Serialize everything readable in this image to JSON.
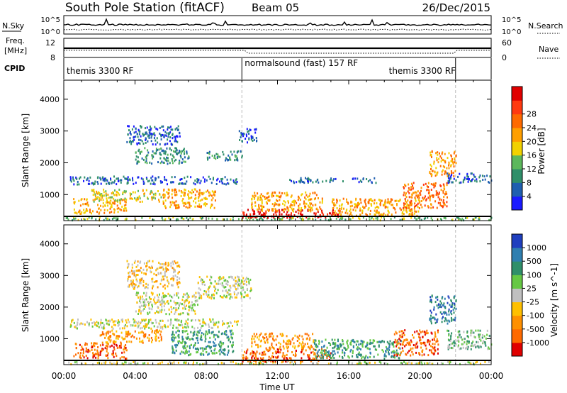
{
  "header": {
    "title": "South Pole Station (fitACF)",
    "beam": "Beam 05",
    "date": "26/Dec/2015"
  },
  "top_panel": {
    "left_label": "N.Sky",
    "left_ticks": [
      "10^5",
      "10^0"
    ],
    "right_label": "N.Search",
    "right_ticks": [
      "10^5",
      "10^0"
    ]
  },
  "freq_panel": {
    "left_label_1": "Freq.",
    "left_label_2": "[MHz]",
    "left_ticks": [
      "12",
      "8"
    ],
    "right_label": "Nave",
    "right_ticks": [
      "60",
      "0"
    ]
  },
  "cpid_panel": {
    "label": "CPID",
    "segments": [
      {
        "text": "themis 3300 RF",
        "start_hour": 0.0,
        "end_hour": 10.0
      },
      {
        "text": "normalsound (fast) 157 RF",
        "start_hour": 10.0,
        "end_hour": 22.0
      },
      {
        "text": "themis 3300 RF",
        "start_hour": 22.0,
        "end_hour": 24.0
      }
    ]
  },
  "chart_data": [
    {
      "type": "heatmap",
      "title": "Power",
      "xlabel": "",
      "ylabel": "Slant Range [km]",
      "xlim": [
        0,
        24
      ],
      "ylim": [
        180,
        4600
      ],
      "y_ticks": [
        1000,
        2000,
        3000,
        4000
      ],
      "colorbar": {
        "label": "Power [dB]",
        "ticks": [
          "4",
          "8",
          "12",
          "16",
          "20",
          "24",
          "28"
        ],
        "colors": [
          "#1a1aff",
          "#1f5fb0",
          "#2f8f6a",
          "#5cb85c",
          "#f2d200",
          "#ff9f00",
          "#ff6a00",
          "#ff3a10",
          "#e00000"
        ]
      },
      "mode_change_hours": [
        10.0,
        22.0
      ],
      "ground_scatter_band_km": [
        200,
        360
      ],
      "echo_regions": [
        {
          "x0": 0.0,
          "x1": 24.0,
          "y0": 220,
          "y1": 320,
          "level": 3
        },
        {
          "x0": 0.3,
          "x1": 9.8,
          "y0": 1350,
          "y1": 1600,
          "level": 1
        },
        {
          "x0": 0.5,
          "x1": 3.5,
          "y0": 420,
          "y1": 900,
          "level": 5
        },
        {
          "x0": 1.5,
          "x1": 5.5,
          "y0": 800,
          "y1": 1200,
          "level": 4
        },
        {
          "x0": 3.5,
          "x1": 6.5,
          "y0": 2600,
          "y1": 3200,
          "level": 1
        },
        {
          "x0": 4.0,
          "x1": 7.0,
          "y0": 2000,
          "y1": 2500,
          "level": 2
        },
        {
          "x0": 5.5,
          "x1": 8.5,
          "y0": 600,
          "y1": 1200,
          "level": 5
        },
        {
          "x0": 8.0,
          "x1": 10.0,
          "y0": 2100,
          "y1": 2400,
          "level": 2
        },
        {
          "x0": 9.8,
          "x1": 10.8,
          "y0": 2650,
          "y1": 3100,
          "level": 1
        },
        {
          "x0": 10.0,
          "x1": 15.5,
          "y0": 300,
          "y1": 560,
          "level": 8
        },
        {
          "x0": 10.5,
          "x1": 14.5,
          "y0": 500,
          "y1": 1100,
          "level": 5
        },
        {
          "x0": 12.5,
          "x1": 17.5,
          "y0": 1400,
          "y1": 1550,
          "level": 1
        },
        {
          "x0": 15.0,
          "x1": 20.0,
          "y0": 350,
          "y1": 900,
          "level": 5
        },
        {
          "x0": 19.0,
          "x1": 21.5,
          "y0": 600,
          "y1": 1400,
          "level": 6
        },
        {
          "x0": 20.5,
          "x1": 22.0,
          "y0": 1600,
          "y1": 2400,
          "level": 5
        },
        {
          "x0": 21.5,
          "x1": 24.0,
          "y0": 1400,
          "y1": 1700,
          "level": 1
        }
      ]
    },
    {
      "type": "heatmap",
      "title": "Velocity",
      "xlabel": "Time UT",
      "ylabel": "Slant Range [km]",
      "xlim": [
        0,
        24
      ],
      "ylim": [
        180,
        4600
      ],
      "x_ticks": [
        "00:00",
        "04:00",
        "08:00",
        "12:00",
        "16:00",
        "20:00",
        "00:00"
      ],
      "y_ticks": [
        1000,
        2000,
        3000,
        4000
      ],
      "colorbar": {
        "label": "Velocity [m s^-1]",
        "ticks": [
          "1000",
          "500",
          "100",
          "25",
          "-25",
          "-100",
          "-500",
          "-1000"
        ],
        "colors": [
          "#1f3fbf",
          "#2f7fb0",
          "#2f8f6a",
          "#66c844",
          "#c0c0c0",
          "#ffc000",
          "#ff9000",
          "#ff6a00",
          "#e00000"
        ]
      },
      "mode_change_hours": [
        10.0,
        22.0
      ],
      "ground_scatter_band_km": [
        200,
        320
      ],
      "echo_regions": [
        {
          "x0": 0.0,
          "x1": 24.0,
          "y0": 220,
          "y1": 300,
          "level": 4
        },
        {
          "x0": 0.3,
          "x1": 9.8,
          "y0": 1350,
          "y1": 1650,
          "level": 4
        },
        {
          "x0": 0.5,
          "x1": 3.5,
          "y0": 400,
          "y1": 900,
          "level": 7
        },
        {
          "x0": 2.0,
          "x1": 5.5,
          "y0": 900,
          "y1": 1300,
          "level": 6
        },
        {
          "x0": 3.5,
          "x1": 6.5,
          "y0": 2600,
          "y1": 3500,
          "level": 5
        },
        {
          "x0": 4.0,
          "x1": 7.5,
          "y0": 1800,
          "y1": 2500,
          "level": 4
        },
        {
          "x0": 7.5,
          "x1": 10.5,
          "y0": 2300,
          "y1": 3000,
          "level": 4
        },
        {
          "x0": 6.0,
          "x1": 9.5,
          "y0": 500,
          "y1": 1300,
          "level": 2
        },
        {
          "x0": 10.0,
          "x1": 15.0,
          "y0": 300,
          "y1": 700,
          "level": 7
        },
        {
          "x0": 10.5,
          "x1": 14.0,
          "y0": 700,
          "y1": 1200,
          "level": 6
        },
        {
          "x0": 14.0,
          "x1": 19.0,
          "y0": 400,
          "y1": 1000,
          "level": 2
        },
        {
          "x0": 18.5,
          "x1": 21.0,
          "y0": 500,
          "y1": 1300,
          "level": 7
        },
        {
          "x0": 20.5,
          "x1": 22.0,
          "y0": 1500,
          "y1": 2400,
          "level": 1
        },
        {
          "x0": 21.5,
          "x1": 24.0,
          "y0": 700,
          "y1": 1300,
          "level": 3
        }
      ]
    }
  ]
}
